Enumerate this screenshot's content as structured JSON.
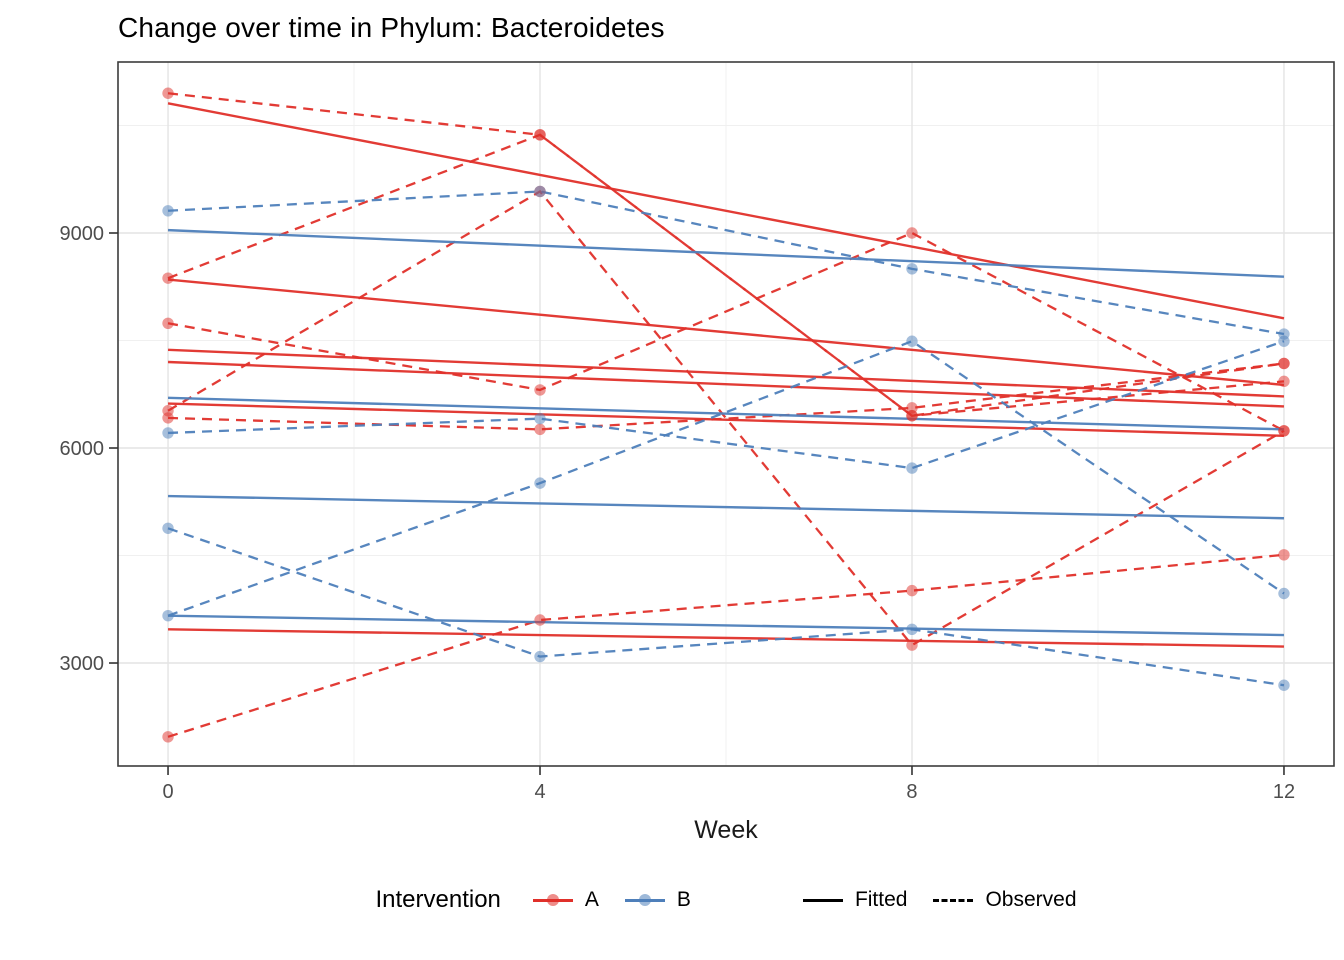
{
  "title": "Change over time in Phylum: Bacteroidetes",
  "axes": {
    "x": {
      "label": "Week",
      "ticks": [
        0,
        4,
        8,
        12
      ],
      "tick_labels": [
        "0",
        "4",
        "8",
        "12"
      ],
      "minor_ticks": [
        2,
        6,
        10
      ],
      "range": [
        -0.538,
        12.538
      ]
    },
    "y": {
      "label": "",
      "ticks": [
        3000,
        6000,
        9000
      ],
      "tick_labels": [
        "3000",
        "6000",
        "9000"
      ],
      "minor_ticks": [
        4500,
        7500,
        10500
      ],
      "range": [
        1563,
        11386
      ]
    }
  },
  "legend": {
    "title": "Intervention",
    "groups": [
      {
        "label": "A",
        "color": "#e0302a"
      },
      {
        "label": "B",
        "color": "#4e7fba"
      }
    ],
    "linetypes": [
      {
        "label": "Fitted",
        "style": "solid"
      },
      {
        "label": "Observed",
        "style": "dashed"
      }
    ]
  },
  "colors": {
    "A": "#e0302a",
    "B": "#4e7fba",
    "grid_major": "#e4e4e4",
    "grid_minor": "#f0f0f0",
    "panel_border": "#3c3c3c",
    "tick": "#333333",
    "tick_label": "#4d4d4d",
    "axis_title": "#1a1a1a"
  },
  "chart_data": {
    "type": "line",
    "title": "Change over time in Phylum: Bacteroidetes",
    "xlabel": "Week",
    "ylabel": "",
    "x": [
      0,
      4,
      8,
      12
    ],
    "xlim": [
      -0.538,
      12.538
    ],
    "ylim": [
      1563,
      11386
    ],
    "grid": true,
    "legend_position": "bottom",
    "series": [
      {
        "id": "A1",
        "group": "A",
        "fitted": [
          10810,
          7810
        ],
        "observed": [
          10950,
          10370,
          6450,
          6930
        ]
      },
      {
        "id": "A2",
        "group": "A",
        "fitted": [
          8350,
          6880
        ],
        "observed": [
          8370,
          10370,
          6450,
          7180
        ]
      },
      {
        "id": "A3",
        "group": "A",
        "fitted": [
          7370,
          6720
        ],
        "observed": [
          7740,
          6810,
          9000,
          6240
        ]
      },
      {
        "id": "A4",
        "group": "A",
        "fitted": [
          6620,
          6170
        ],
        "observed": [
          6420,
          6260,
          6560,
          7180
        ]
      },
      {
        "id": "A5",
        "group": "A",
        "fitted": [
          3470,
          3230
        ],
        "observed": [
          1970,
          3600,
          4010,
          4510
        ]
      },
      {
        "id": "A6",
        "group": "A",
        "fitted": [
          7200,
          6580
        ],
        "observed": [
          6520,
          9580,
          3250,
          6240
        ]
      },
      {
        "id": "B1",
        "group": "B",
        "fitted": [
          9040,
          8390
        ],
        "observed": [
          9310,
          9580,
          8500,
          7590
        ]
      },
      {
        "id": "B2",
        "group": "B",
        "fitted": [
          6700,
          6260
        ],
        "observed": [
          6210,
          6410,
          5720,
          7490
        ]
      },
      {
        "id": "B3",
        "group": "B",
        "fitted": [
          3660,
          3390
        ],
        "observed": [
          4880,
          3090,
          3470,
          2690
        ]
      },
      {
        "id": "B4",
        "group": "B",
        "fitted": [
          5330,
          5020
        ],
        "observed": [
          3660,
          5510,
          7490,
          3970
        ]
      }
    ]
  }
}
